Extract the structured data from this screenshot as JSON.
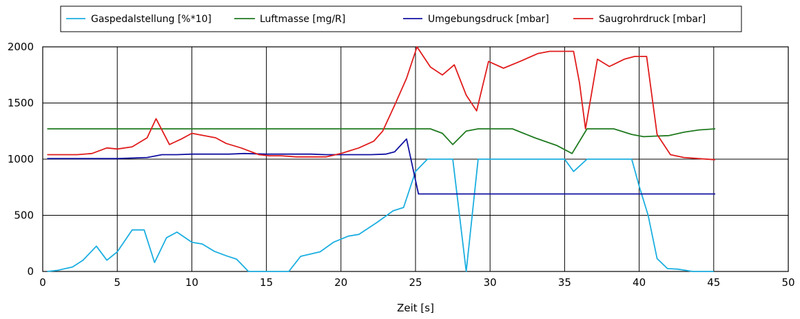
{
  "chart_data": {
    "type": "line",
    "title": "",
    "xlabel": "Zeit [s]",
    "ylabel": "",
    "xlim": [
      0,
      50
    ],
    "ylim": [
      0,
      2000
    ],
    "xticks": [
      0,
      5,
      10,
      15,
      20,
      25,
      30,
      35,
      40,
      45,
      50
    ],
    "yticks": [
      0,
      500,
      1000,
      1500,
      2000
    ],
    "grid": true,
    "legend": "top",
    "series": [
      {
        "name": "Gaspedalstellung [%*10]",
        "color": "#1aaee0",
        "points": [
          [
            0.3,
            0
          ],
          [
            1,
            10
          ],
          [
            2,
            40
          ],
          [
            2.7,
            100
          ],
          [
            3.6,
            225
          ],
          [
            4.3,
            100
          ],
          [
            5,
            175
          ],
          [
            6,
            370
          ],
          [
            6.8,
            370
          ],
          [
            7.5,
            80
          ],
          [
            8.3,
            300
          ],
          [
            9,
            350
          ],
          [
            10,
            260
          ],
          [
            10.7,
            245
          ],
          [
            11.5,
            180
          ],
          [
            12.3,
            140
          ],
          [
            13,
            110
          ],
          [
            13.8,
            0
          ],
          [
            15,
            0
          ],
          [
            16.5,
            0
          ],
          [
            17.3,
            135
          ],
          [
            18.6,
            175
          ],
          [
            19.5,
            260
          ],
          [
            20.5,
            315
          ],
          [
            21.2,
            330
          ],
          [
            22.4,
            435
          ],
          [
            23.5,
            540
          ],
          [
            24.2,
            570
          ],
          [
            25,
            890
          ],
          [
            25.8,
            1000
          ],
          [
            27.5,
            1000
          ],
          [
            28.4,
            0
          ],
          [
            29.2,
            1000
          ],
          [
            35,
            1000
          ],
          [
            35.6,
            890
          ],
          [
            36.5,
            1000
          ],
          [
            39.5,
            1000
          ],
          [
            40,
            760
          ],
          [
            40.6,
            500
          ],
          [
            41.2,
            115
          ],
          [
            41.9,
            25
          ],
          [
            42.6,
            20
          ],
          [
            43.6,
            0
          ],
          [
            45,
            0
          ]
        ]
      },
      {
        "name": "Luftmasse [mg/R]",
        "color": "#1f7a1f",
        "points": [
          [
            0.3,
            1270
          ],
          [
            26,
            1270
          ],
          [
            26.8,
            1230
          ],
          [
            27.5,
            1130
          ],
          [
            28.4,
            1250
          ],
          [
            29.2,
            1270
          ],
          [
            31.5,
            1270
          ],
          [
            33,
            1190
          ],
          [
            34.5,
            1120
          ],
          [
            35.5,
            1050
          ],
          [
            36.5,
            1270
          ],
          [
            38.3,
            1270
          ],
          [
            39.5,
            1220
          ],
          [
            40.3,
            1200
          ],
          [
            41,
            1205
          ],
          [
            42,
            1210
          ],
          [
            43,
            1240
          ],
          [
            44,
            1260
          ],
          [
            45.1,
            1270
          ]
        ]
      },
      {
        "name": "Umgebungsdruck [mbar]",
        "color": "#1010a0",
        "points": [
          [
            0.3,
            1005
          ],
          [
            5,
            1005
          ],
          [
            7,
            1015
          ],
          [
            8,
            1040
          ],
          [
            9,
            1040
          ],
          [
            10,
            1045
          ],
          [
            12.5,
            1045
          ],
          [
            13.5,
            1050
          ],
          [
            15,
            1045
          ],
          [
            18,
            1045
          ],
          [
            19,
            1040
          ],
          [
            22,
            1040
          ],
          [
            23,
            1045
          ],
          [
            23.6,
            1065
          ],
          [
            24.4,
            1180
          ],
          [
            25.2,
            690
          ],
          [
            45.1,
            690
          ]
        ]
      },
      {
        "name": "Saugrohrdruck [mbar]",
        "color": "#e01b1b",
        "points": [
          [
            0.3,
            1040
          ],
          [
            2.3,
            1040
          ],
          [
            3.3,
            1050
          ],
          [
            4.3,
            1100
          ],
          [
            5,
            1090
          ],
          [
            6,
            1110
          ],
          [
            7,
            1190
          ],
          [
            7.6,
            1360
          ],
          [
            8.5,
            1130
          ],
          [
            9.3,
            1180
          ],
          [
            10,
            1230
          ],
          [
            10.8,
            1210
          ],
          [
            11.6,
            1190
          ],
          [
            12.3,
            1140
          ],
          [
            13.3,
            1100
          ],
          [
            14.5,
            1040
          ],
          [
            15.2,
            1030
          ],
          [
            16,
            1030
          ],
          [
            17,
            1020
          ],
          [
            18,
            1020
          ],
          [
            19,
            1020
          ],
          [
            20,
            1050
          ],
          [
            21.2,
            1100
          ],
          [
            22.2,
            1160
          ],
          [
            22.8,
            1250
          ],
          [
            23.6,
            1480
          ],
          [
            24.4,
            1720
          ],
          [
            25.1,
            2000
          ],
          [
            26,
            1820
          ],
          [
            26.8,
            1750
          ],
          [
            27.6,
            1840
          ],
          [
            28.4,
            1570
          ],
          [
            29.1,
            1430
          ],
          [
            29.9,
            1870
          ],
          [
            30.9,
            1810
          ],
          [
            32,
            1870
          ],
          [
            33.2,
            1940
          ],
          [
            34,
            1960
          ],
          [
            35,
            1960
          ],
          [
            35.6,
            1960
          ],
          [
            36,
            1680
          ],
          [
            36.4,
            1270
          ],
          [
            37.2,
            1890
          ],
          [
            38,
            1825
          ],
          [
            39,
            1890
          ],
          [
            39.7,
            1915
          ],
          [
            40.5,
            1915
          ],
          [
            41.2,
            1220
          ],
          [
            42.1,
            1040
          ],
          [
            43,
            1015
          ],
          [
            44,
            1005
          ],
          [
            45.1,
            995
          ]
        ]
      }
    ]
  }
}
